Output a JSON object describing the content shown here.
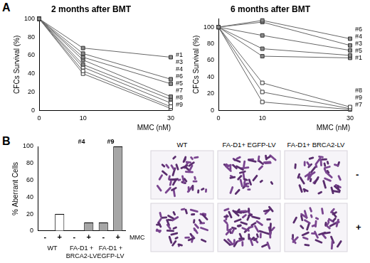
{
  "panel_letters": [
    "A",
    "B"
  ],
  "chart_data": [
    {
      "type": "line",
      "title": "2 months after BMT",
      "y_label": "CFCs Survival (%)",
      "x_label": "MMC (nM)",
      "x": [
        0,
        10,
        30
      ],
      "xlim": [
        0,
        30
      ],
      "xticks": [
        0,
        10,
        30
      ],
      "ylim": [
        0,
        100
      ],
      "yticks": [
        0,
        20,
        40,
        60,
        80,
        100
      ],
      "grid": false,
      "series": [
        {
          "name": "#1",
          "color": "#8c8c8c",
          "marker": "square",
          "values": [
            100,
            68,
            58
          ]
        },
        {
          "name": "#3",
          "color": "#8c8c8c",
          "marker": "square",
          "values": [
            100,
            62,
            34
          ]
        },
        {
          "name": "#4",
          "color": "#8c8c8c",
          "marker": "square",
          "values": [
            100,
            58,
            29
          ]
        },
        {
          "name": "#6",
          "color": "#8c8c8c",
          "marker": "square",
          "values": [
            100,
            55,
            15
          ]
        },
        {
          "name": "#5",
          "color": "#8c8c8c",
          "marker": "square",
          "values": [
            100,
            50,
            12
          ]
        },
        {
          "name": "#7",
          "color": "#ffffff",
          "marker": "square",
          "values": [
            100,
            47,
            8
          ]
        },
        {
          "name": "#8",
          "color": "#ffffff",
          "marker": "square",
          "values": [
            100,
            43,
            4
          ]
        },
        {
          "name": "#9",
          "color": "#ffffff",
          "marker": "square",
          "values": [
            100,
            40,
            2
          ]
        }
      ]
    },
    {
      "type": "line",
      "title": "6 months after BMT",
      "y_label": "CFCs Survival (%)",
      "x_label": "MMC (nM)",
      "x": [
        0,
        10,
        30
      ],
      "xlim": [
        0,
        30
      ],
      "xticks": [
        0,
        10,
        30
      ],
      "ylim": [
        0,
        110
      ],
      "yticks": [
        0,
        20,
        40,
        60,
        80,
        100
      ],
      "grid": false,
      "series": [
        {
          "name": "#6",
          "color": "#8c8c8c",
          "marker": "square",
          "values": [
            100,
            108,
            86
          ]
        },
        {
          "name": "#4",
          "color": "#8c8c8c",
          "marker": "square",
          "values": [
            100,
            106,
            78
          ]
        },
        {
          "name": "#3",
          "color": "#8c8c8c",
          "marker": "square",
          "values": [
            100,
            90,
            72
          ]
        },
        {
          "name": "#5",
          "color": "#8c8c8c",
          "marker": "square",
          "values": [
            100,
            74,
            66
          ]
        },
        {
          "name": "#1",
          "color": "#8c8c8c",
          "marker": "square",
          "values": [
            100,
            65,
            63
          ]
        },
        {
          "name": "#8",
          "color": "#ffffff",
          "marker": "square",
          "values": [
            100,
            33,
            4
          ]
        },
        {
          "name": "#9",
          "color": "#ffffff",
          "marker": "square",
          "values": [
            100,
            22,
            2
          ]
        },
        {
          "name": "#7",
          "color": "#ffffff",
          "marker": "square",
          "values": [
            100,
            10,
            1
          ]
        }
      ]
    },
    {
      "type": "bar",
      "y_label": "% Aberrant Cells",
      "x_label": "MMC",
      "categories": [
        "-",
        "+",
        "-",
        "+",
        "-",
        "+"
      ],
      "values": [
        0,
        20,
        0,
        10,
        10,
        100
      ],
      "colors": [
        "#ffffff",
        "#ffffff",
        "#a6a6a6",
        "#a6a6a6",
        "#a6a6a6",
        "#a6a6a6"
      ],
      "groups": [
        {
          "label": "WT"
        },
        {
          "label": "FA-D1 + BRCA2-LV",
          "note": "#4"
        },
        {
          "label": "FA-D1 + EGFP-LV",
          "note": "#9"
        }
      ],
      "ylim": [
        0,
        100
      ],
      "yticks": [
        0,
        20,
        40,
        60,
        80,
        100
      ],
      "grid": false
    }
  ],
  "micrographs": {
    "columns": [
      "WT",
      "FA-D1+ EGFP-LV",
      "FA-D1+ BRCA2-LV"
    ],
    "rows": [
      "-",
      "+"
    ]
  }
}
